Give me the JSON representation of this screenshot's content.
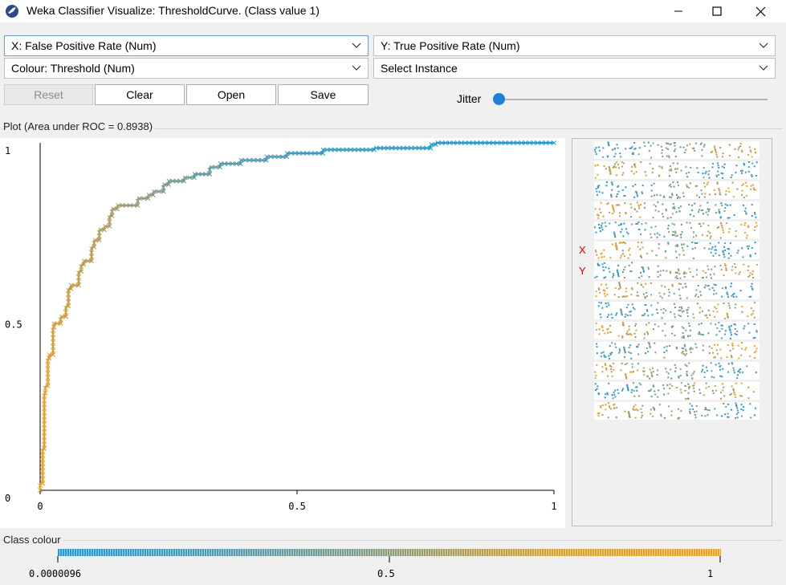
{
  "window": {
    "title": "Weka Classifier Visualize: ThresholdCurve. (Class value 1)",
    "controls": {
      "minimize_icon": "minimize-icon",
      "maximize_icon": "maximize-icon",
      "close_icon": "close-icon"
    }
  },
  "selectors": {
    "x_axis": "X: False Positive Rate (Num)",
    "y_axis": "Y: True Positive Rate (Num)",
    "colour": "Colour: Threshold (Num)",
    "instance": "Select Instance"
  },
  "buttons": {
    "reset": "Reset",
    "clear": "Clear",
    "open": "Open",
    "save": "Save"
  },
  "jitter": {
    "label": "Jitter",
    "value": 0
  },
  "plot": {
    "group_label": "Plot (Area under ROC = 0.8938)",
    "x_ticks": [
      "0",
      "0.5",
      "1"
    ],
    "y_ticks": [
      "1",
      "0.5",
      "0"
    ],
    "attribute_panel": {
      "x_marker": "X",
      "y_marker": "Y",
      "strip_count": 14
    }
  },
  "class_colour": {
    "label": "Class colour",
    "ticks": [
      "0.0000096",
      "0.5",
      "1"
    ]
  },
  "colors": {
    "low": "#1f9ad8",
    "mid": "#7d9a8a",
    "high": "#f4a020",
    "accent": "#1e7fd8"
  },
  "chart_data": {
    "type": "line",
    "title": "Plot (Area under ROC = 0.8938)",
    "xlabel": "",
    "ylabel": "",
    "xlim": [
      0,
      1
    ],
    "ylim": [
      0,
      1
    ],
    "series": [
      {
        "points": [
          [
            0,
            0
          ],
          [
            0.005,
            0.02
          ],
          [
            0.008,
            0.12
          ],
          [
            0.01,
            0.28
          ],
          [
            0.015,
            0.3
          ],
          [
            0.018,
            0.38
          ],
          [
            0.025,
            0.39
          ],
          [
            0.027,
            0.47
          ],
          [
            0.04,
            0.48
          ],
          [
            0.05,
            0.5
          ],
          [
            0.055,
            0.53
          ],
          [
            0.06,
            0.58
          ],
          [
            0.075,
            0.59
          ],
          [
            0.08,
            0.63
          ],
          [
            0.085,
            0.65
          ],
          [
            0.1,
            0.66
          ],
          [
            0.105,
            0.7
          ],
          [
            0.115,
            0.72
          ],
          [
            0.125,
            0.75
          ],
          [
            0.135,
            0.76
          ],
          [
            0.14,
            0.79
          ],
          [
            0.15,
            0.81
          ],
          [
            0.16,
            0.82
          ],
          [
            0.19,
            0.82
          ],
          [
            0.21,
            0.84
          ],
          [
            0.22,
            0.85
          ],
          [
            0.24,
            0.86
          ],
          [
            0.25,
            0.88
          ],
          [
            0.28,
            0.89
          ],
          [
            0.3,
            0.9
          ],
          [
            0.33,
            0.91
          ],
          [
            0.35,
            0.93
          ],
          [
            0.39,
            0.94
          ],
          [
            0.44,
            0.95
          ],
          [
            0.48,
            0.96
          ],
          [
            0.55,
            0.97
          ],
          [
            0.65,
            0.98
          ],
          [
            0.76,
            0.985
          ],
          [
            0.77,
            0.995
          ],
          [
            0.85,
            1.0
          ],
          [
            1.0,
            1.0
          ]
        ],
        "thresholds": [
          1,
          0.98,
          0.96,
          0.95,
          0.94,
          0.92,
          0.9,
          0.88,
          0.86,
          0.84,
          0.83,
          0.82,
          0.8,
          0.78,
          0.77,
          0.76,
          0.75,
          0.73,
          0.72,
          0.7,
          0.68,
          0.66,
          0.62,
          0.58,
          0.55,
          0.52,
          0.5,
          0.46,
          0.42,
          0.38,
          0.35,
          0.3,
          0.26,
          0.22,
          0.18,
          0.14,
          0.1,
          0.07,
          0.04,
          0.02,
          9.6e-06
        ]
      }
    ]
  }
}
